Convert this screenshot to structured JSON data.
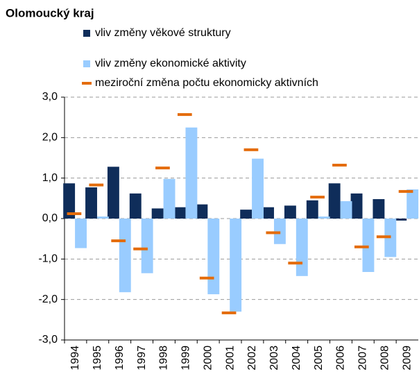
{
  "chart_data": {
    "type": "bar",
    "title": "Olomoucký kraj",
    "categories": [
      "1994",
      "1995",
      "1996",
      "1997",
      "1998",
      "1999",
      "2000",
      "2001",
      "2002",
      "2003",
      "2004",
      "2005",
      "2006",
      "2007",
      "2008",
      "2009"
    ],
    "series": [
      {
        "name": "vliv změny věkové struktury",
        "color": "#0f2d5a",
        "type": "bar",
        "values": [
          0.87,
          0.77,
          1.28,
          0.62,
          0.25,
          0.28,
          0.35,
          0.0,
          0.22,
          0.28,
          0.32,
          0.45,
          0.87,
          0.62,
          0.48,
          -0.05
        ]
      },
      {
        "name": "vliv změny ekonomické aktivity",
        "color": "#99ccff",
        "type": "bar",
        "values": [
          -0.73,
          0.05,
          -1.82,
          -1.35,
          0.98,
          2.25,
          -1.87,
          -2.3,
          1.48,
          -0.63,
          -1.42,
          0.05,
          0.43,
          -1.32,
          -0.95,
          0.72
        ]
      },
      {
        "name": "meziroční změna počtu ekonomicky aktivních",
        "color": "#e46c0a",
        "type": "dash",
        "values": [
          0.12,
          0.83,
          -0.55,
          -0.75,
          1.25,
          2.57,
          -1.47,
          -2.33,
          1.7,
          -0.35,
          -1.1,
          0.53,
          1.32,
          -0.7,
          -0.45,
          0.67
        ]
      }
    ],
    "ylim": [
      -3,
      3
    ],
    "yticks": [
      {
        "value": -3,
        "label": "-3,0"
      },
      {
        "value": -2,
        "label": "-2,0"
      },
      {
        "value": -1,
        "label": "-1,0"
      },
      {
        "value": 0,
        "label": "0,0"
      },
      {
        "value": 1,
        "label": "1,0"
      },
      {
        "value": 2,
        "label": "2,0"
      },
      {
        "value": 3,
        "label": "3,0"
      }
    ],
    "grid": true
  }
}
